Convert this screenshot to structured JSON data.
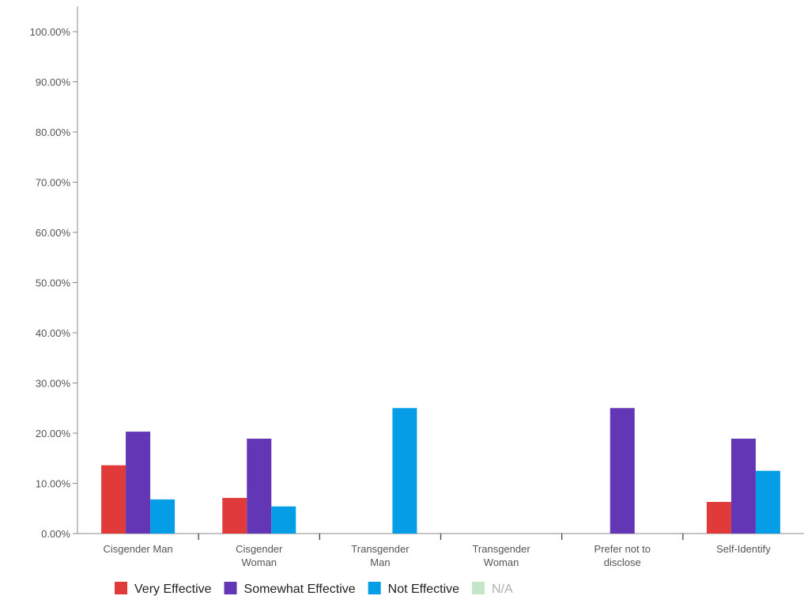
{
  "chart_data": {
    "type": "bar",
    "title": "",
    "xlabel": "",
    "ylabel": "",
    "ylim": [
      0,
      100
    ],
    "yticks": [
      0,
      10,
      20,
      30,
      40,
      50,
      60,
      70,
      80,
      90,
      100
    ],
    "ytick_labels": [
      "0.00%",
      "10.00%",
      "20.00%",
      "30.00%",
      "40.00%",
      "50.00%",
      "60.00%",
      "70.00%",
      "80.00%",
      "90.00%",
      "100.00%"
    ],
    "categories": [
      [
        "Cisgender Man"
      ],
      [
        "Cisgender",
        "Woman"
      ],
      [
        "Transgender",
        "Man"
      ],
      [
        "Transgender",
        "Woman"
      ],
      [
        "Prefer not to",
        "disclose"
      ],
      [
        "Self-Identify"
      ]
    ],
    "series": [
      {
        "name": "Very Effective",
        "color": "#e03a3a",
        "values": [
          13.6,
          7.1,
          0,
          0,
          0,
          6.3
        ]
      },
      {
        "name": "Somewhat Effective",
        "color": "#6236b4",
        "values": [
          20.3,
          18.9,
          0,
          0,
          25.0,
          18.9
        ]
      },
      {
        "name": "Not Effective",
        "color": "#059de6",
        "values": [
          6.8,
          5.4,
          25.0,
          0,
          0,
          12.5
        ]
      },
      {
        "name": "N/A",
        "color": "#c5e5c9",
        "values": [
          0,
          0,
          0,
          0,
          0,
          0
        ]
      }
    ],
    "grid": false,
    "legend_position": "bottom-center"
  }
}
